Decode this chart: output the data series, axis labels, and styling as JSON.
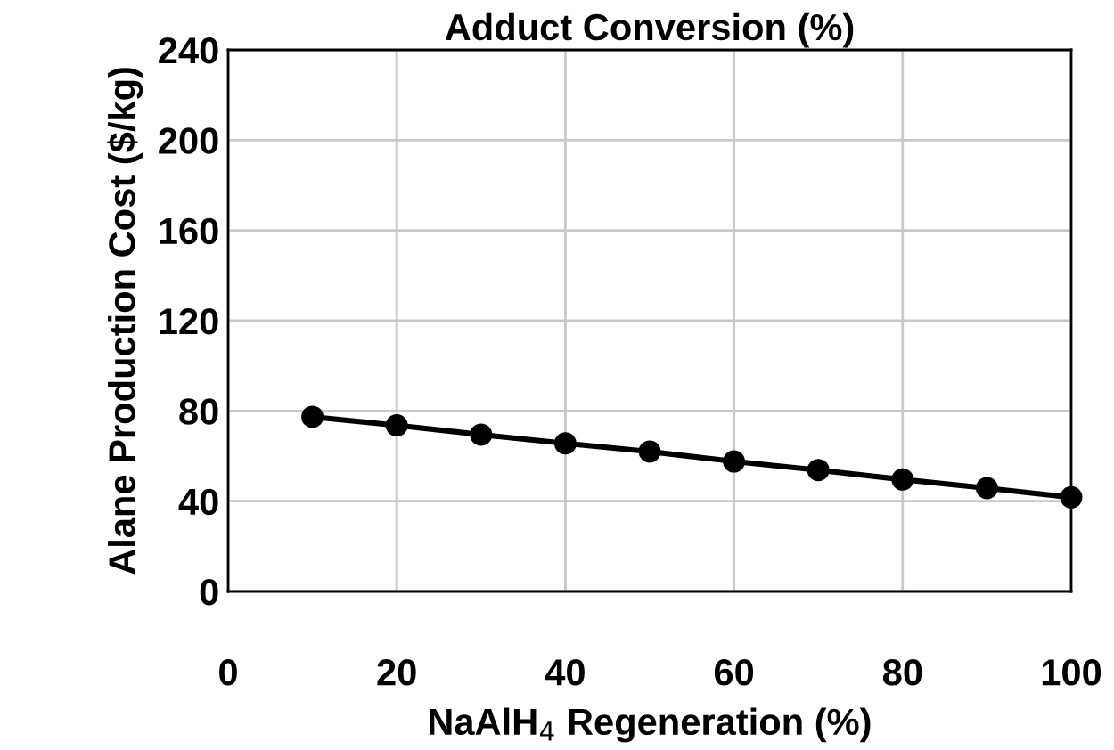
{
  "chart_data": {
    "type": "line",
    "title": "Adduct Conversion (%)",
    "xlabel": "NaAlH$_{4}$ Regeneration (%)",
    "ylabel": "Alane Production Cost ($/kg)",
    "x": [
      10,
      20,
      30,
      40,
      50,
      60,
      70,
      80,
      90,
      100
    ],
    "series": [
      {
        "color": "#000000",
        "values": [
          77.4,
          73.6,
          69.5,
          65.6,
          62.0,
          57.6,
          53.8,
          49.6,
          45.8,
          41.7
        ]
      }
    ],
    "xlim": [
      0,
      100
    ],
    "xticks": [
      0,
      20,
      40,
      60,
      80,
      100
    ],
    "ylim": [
      0,
      240
    ],
    "yticks": [
      0,
      40,
      80,
      120,
      160,
      200,
      240
    ],
    "grid": true,
    "marker": "circle",
    "line_style": "solid"
  }
}
